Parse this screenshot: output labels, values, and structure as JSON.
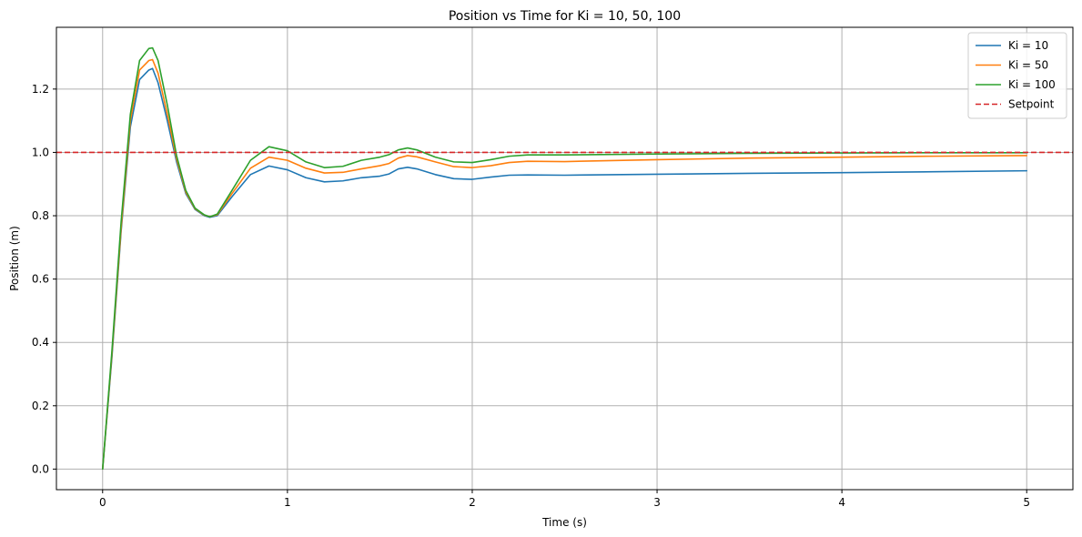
{
  "chart_data": {
    "type": "line",
    "title": "Position vs Time for Ki = 10, 50, 100",
    "xlabel": "Time (s)",
    "ylabel": "Position (m)",
    "xlim": [
      -0.25,
      5.25
    ],
    "ylim": [
      -0.065,
      1.395
    ],
    "xticks": [
      0,
      1,
      2,
      3,
      4,
      5
    ],
    "xtick_labels": [
      "0",
      "1",
      "2",
      "3",
      "4",
      "5"
    ],
    "yticks": [
      0.0,
      0.2,
      0.4,
      0.6,
      0.8,
      1.0,
      1.2
    ],
    "ytick_labels": [
      "0.0",
      "0.2",
      "0.4",
      "0.6",
      "0.8",
      "1.0",
      "1.2"
    ],
    "grid": true,
    "legend_position": "top-right",
    "series": [
      {
        "name": "Ki = 10",
        "color": "#1f77b4",
        "style": "solid",
        "x": [
          0,
          0.05,
          0.1,
          0.15,
          0.2,
          0.25,
          0.27,
          0.3,
          0.35,
          0.4,
          0.45,
          0.5,
          0.55,
          0.58,
          0.62,
          0.7,
          0.8,
          0.9,
          1.0,
          1.1,
          1.2,
          1.3,
          1.4,
          1.5,
          1.55,
          1.6,
          1.65,
          1.7,
          1.8,
          1.9,
          2.0,
          2.1,
          2.2,
          2.3,
          2.5,
          3.0,
          3.5,
          4.0,
          4.5,
          5.0
        ],
        "y": [
          0.0,
          0.35,
          0.75,
          1.08,
          1.23,
          1.26,
          1.265,
          1.22,
          1.1,
          0.97,
          0.87,
          0.82,
          0.8,
          0.795,
          0.8,
          0.86,
          0.93,
          0.957,
          0.945,
          0.92,
          0.907,
          0.91,
          0.92,
          0.925,
          0.932,
          0.948,
          0.953,
          0.948,
          0.93,
          0.917,
          0.915,
          0.922,
          0.928,
          0.929,
          0.928,
          0.931,
          0.934,
          0.936,
          0.939,
          0.942
        ]
      },
      {
        "name": "Ki = 50",
        "color": "#ff7f0e",
        "style": "solid",
        "x": [
          0,
          0.05,
          0.1,
          0.15,
          0.2,
          0.25,
          0.27,
          0.3,
          0.35,
          0.4,
          0.45,
          0.5,
          0.55,
          0.58,
          0.62,
          0.7,
          0.8,
          0.9,
          1.0,
          1.1,
          1.2,
          1.3,
          1.4,
          1.5,
          1.55,
          1.6,
          1.65,
          1.7,
          1.8,
          1.9,
          2.0,
          2.1,
          2.2,
          2.3,
          2.5,
          3.0,
          3.5,
          4.0,
          4.5,
          5.0
        ],
        "y": [
          0.0,
          0.36,
          0.76,
          1.1,
          1.26,
          1.29,
          1.293,
          1.25,
          1.12,
          0.98,
          0.875,
          0.822,
          0.802,
          0.797,
          0.803,
          0.87,
          0.95,
          0.985,
          0.975,
          0.95,
          0.935,
          0.937,
          0.948,
          0.958,
          0.965,
          0.982,
          0.99,
          0.986,
          0.97,
          0.955,
          0.952,
          0.958,
          0.968,
          0.972,
          0.971,
          0.977,
          0.982,
          0.985,
          0.988,
          0.99
        ]
      },
      {
        "name": "Ki = 100",
        "color": "#2ca02c",
        "style": "solid",
        "x": [
          0,
          0.05,
          0.1,
          0.15,
          0.2,
          0.25,
          0.27,
          0.3,
          0.35,
          0.4,
          0.45,
          0.5,
          0.55,
          0.58,
          0.62,
          0.7,
          0.8,
          0.9,
          1.0,
          1.1,
          1.2,
          1.3,
          1.4,
          1.5,
          1.55,
          1.6,
          1.65,
          1.7,
          1.8,
          1.9,
          2.0,
          2.1,
          2.2,
          2.3,
          2.5,
          3.0,
          3.5,
          4.0,
          4.5,
          5.0
        ],
        "y": [
          0.0,
          0.37,
          0.78,
          1.12,
          1.29,
          1.328,
          1.33,
          1.29,
          1.15,
          0.99,
          0.88,
          0.824,
          0.803,
          0.797,
          0.805,
          0.88,
          0.975,
          1.018,
          1.005,
          0.97,
          0.952,
          0.956,
          0.975,
          0.985,
          0.993,
          1.008,
          1.014,
          1.008,
          0.985,
          0.97,
          0.968,
          0.977,
          0.988,
          0.992,
          0.992,
          0.995,
          0.997,
          0.998,
          0.999,
          0.999
        ]
      },
      {
        "name": "Setpoint",
        "color": "#d62728",
        "style": "dashed",
        "x": [
          -0.25,
          5.25
        ],
        "y": [
          1.0,
          1.0
        ]
      }
    ]
  }
}
